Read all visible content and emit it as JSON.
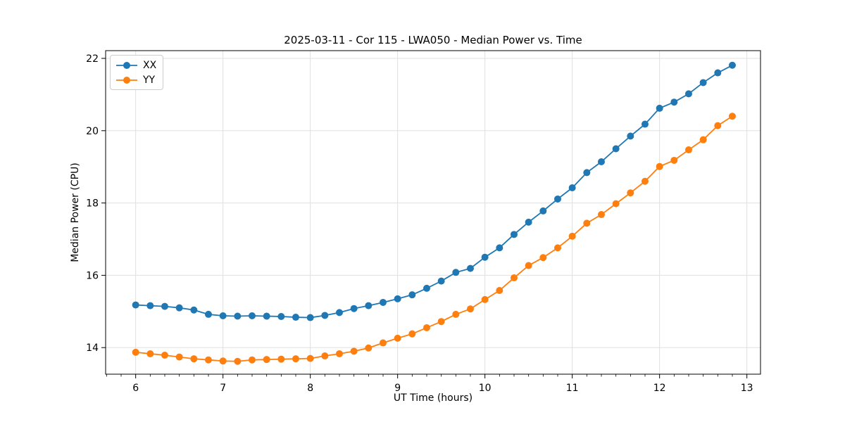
{
  "chart_data": {
    "type": "line",
    "title": "2025-03-11 - Cor 115 - LWA050 - Median Power vs. Time",
    "xlabel": "UT Time (hours)",
    "ylabel": "Median Power (CPU)",
    "xlim": [
      5.656,
      13.156
    ],
    "ylim": [
      13.265,
      22.214
    ],
    "xticks": [
      6,
      7,
      8,
      9,
      10,
      11,
      12,
      13
    ],
    "yticks": [
      14,
      16,
      18,
      20,
      22
    ],
    "x_minor_tick_step": 0.16667,
    "grid": true,
    "grid_color": "#e0e0e0",
    "legend_position": "upper left",
    "x": [
      6.0,
      6.1667,
      6.3333,
      6.5,
      6.6667,
      6.8333,
      7.0,
      7.1667,
      7.3333,
      7.5,
      7.6667,
      7.8333,
      8.0,
      8.1667,
      8.3333,
      8.5,
      8.6667,
      8.8333,
      9.0,
      9.1667,
      9.3333,
      9.5,
      9.6667,
      9.8333,
      10.0,
      10.1667,
      10.3333,
      10.5,
      10.6667,
      10.8333,
      11.0,
      11.1667,
      11.3333,
      11.5,
      11.6667,
      11.8333,
      12.0,
      12.1667,
      12.3333,
      12.5,
      12.6667,
      12.8333
    ],
    "series": [
      {
        "name": "XX",
        "color": "#1f77b4",
        "values": [
          15.18,
          15.16,
          15.14,
          15.1,
          15.04,
          14.92,
          14.88,
          14.87,
          14.88,
          14.87,
          14.86,
          14.84,
          14.83,
          14.89,
          14.97,
          15.08,
          15.16,
          15.25,
          15.35,
          15.46,
          15.64,
          15.84,
          16.08,
          16.19,
          16.5,
          16.76,
          17.13,
          17.47,
          17.78,
          18.11,
          18.42,
          18.84,
          19.14,
          19.5,
          19.85,
          20.18,
          20.62,
          20.79,
          21.02,
          21.33,
          21.6,
          21.81
        ]
      },
      {
        "name": "YY",
        "color": "#ff7f0e",
        "values": [
          13.87,
          13.83,
          13.79,
          13.74,
          13.69,
          13.66,
          13.63,
          13.62,
          13.66,
          13.67,
          13.68,
          13.69,
          13.7,
          13.77,
          13.83,
          13.9,
          13.99,
          14.13,
          14.26,
          14.38,
          14.55,
          14.72,
          14.92,
          15.07,
          15.33,
          15.58,
          15.93,
          16.27,
          16.49,
          16.76,
          17.08,
          17.44,
          17.68,
          17.98,
          18.28,
          18.6,
          19.01,
          19.18,
          19.47,
          19.75,
          20.14,
          20.4
        ]
      }
    ]
  }
}
